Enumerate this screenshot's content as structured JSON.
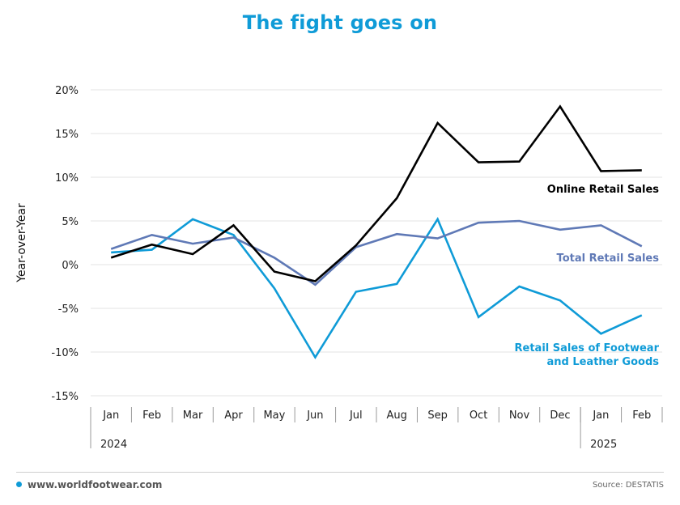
{
  "chart_data": {
    "type": "line",
    "title": "The fight goes on",
    "ylabel": "Year-over-Year",
    "x": [
      "Jan",
      "Feb",
      "Mar",
      "Apr",
      "May",
      "Jun",
      "Jul",
      "Aug",
      "Sep",
      "Oct",
      "Nov",
      "Dec",
      "Jan",
      "Feb"
    ],
    "year_labels": [
      "2024",
      "2025"
    ],
    "yticks": [
      "20%",
      "15%",
      "10%",
      "5%",
      "0%",
      "-5%",
      "-10%",
      "-15%"
    ],
    "ylim": [
      -15,
      20
    ],
    "grid": "horizontal",
    "series": [
      {
        "name": "Online Retail Sales",
        "color": "#000000",
        "values": [
          0.8,
          2.3,
          1.2,
          4.5,
          -0.8,
          -1.9,
          2.2,
          7.6,
          16.2,
          11.7,
          11.8,
          18.1,
          10.7,
          10.8
        ]
      },
      {
        "name": "Total Retail Sales",
        "color": "#5f79b6",
        "values": [
          1.8,
          3.4,
          2.4,
          3.1,
          0.8,
          -2.3,
          2.0,
          3.5,
          3.0,
          4.8,
          5.0,
          4.0,
          4.5,
          2.1
        ]
      },
      {
        "name": "Retail Sales of Footwear and Leather Goods",
        "color": "#0f9bd7",
        "label_lines": [
          "Retail Sales of Footwear",
          "and Leather Goods"
        ],
        "values": [
          1.4,
          1.7,
          5.2,
          3.4,
          -2.7,
          -10.6,
          -3.1,
          -2.2,
          5.2,
          -6.0,
          -2.5,
          -4.1,
          -7.9,
          -5.8
        ]
      }
    ]
  },
  "footer": {
    "source_site": "www.worldfootwear.com",
    "source_credit": "Source: DESTATIS"
  }
}
